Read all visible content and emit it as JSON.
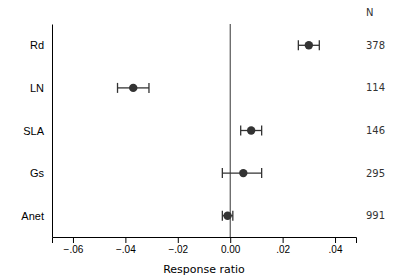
{
  "chart_data": {
    "type": "forest",
    "categories": [
      "Rd",
      "LN",
      "SLA",
      "Gs",
      "Anet"
    ],
    "values": [
      0.03,
      -0.037,
      0.008,
      0.005,
      -0.001
    ],
    "ci_lower": [
      0.026,
      -0.043,
      0.004,
      -0.003,
      -0.003
    ],
    "ci_upper": [
      0.034,
      -0.031,
      0.012,
      0.012,
      0.001
    ],
    "n_values": [
      378,
      114,
      146,
      295,
      991
    ],
    "n_label": "N",
    "xlabel": "Response ratio",
    "xlim": [
      -0.068,
      0.048
    ],
    "xticks": [
      {
        "value": -0.06,
        "label": "−.06"
      },
      {
        "value": -0.04,
        "label": "−.04"
      },
      {
        "value": -0.02,
        "label": "−.02"
      },
      {
        "value": 0,
        "label": "0.00"
      },
      {
        "value": 0.02,
        "label": ".02"
      },
      {
        "value": 0.04,
        "label": ".04"
      }
    ],
    "reference_x": 0,
    "color": "#333333"
  }
}
